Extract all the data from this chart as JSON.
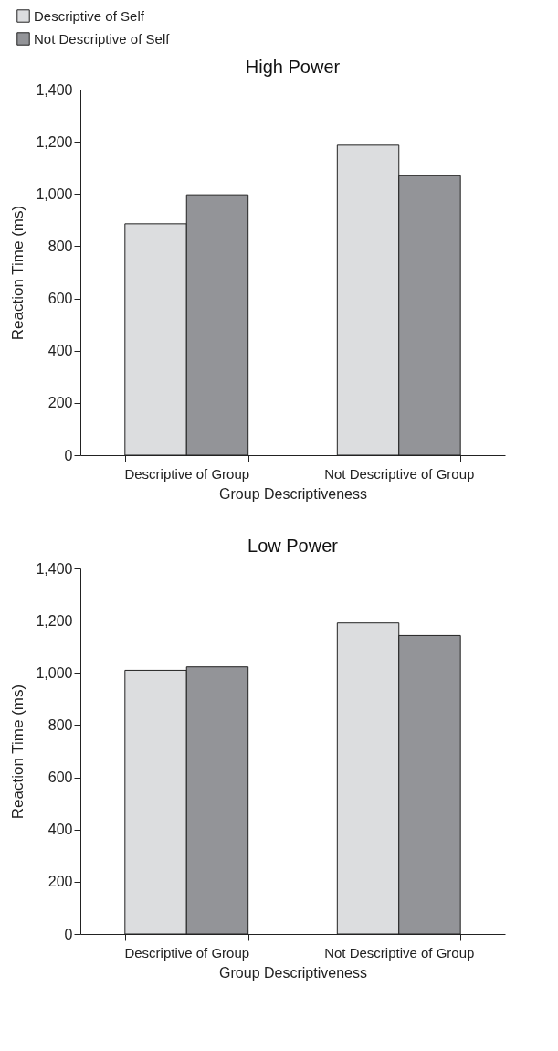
{
  "chart_data": [
    {
      "type": "bar",
      "title": "High Power",
      "xlabel": "Group Descriptiveness",
      "ylabel": "Reaction Time (ms)",
      "categories": [
        "Descriptive of Group",
        "Not Descriptive of Group"
      ],
      "series": [
        {
          "name": "Descriptive of Self",
          "color": "#dcdddf",
          "values": [
            886,
            1187
          ]
        },
        {
          "name": "Not Descriptive of Self",
          "color": "#939498",
          "values": [
            997,
            1070
          ]
        }
      ],
      "ylim": [
        0,
        1400
      ],
      "yticks": [
        0,
        200,
        400,
        600,
        800,
        {
          "value": 1000,
          "label": "1,000"
        },
        {
          "value": 1200,
          "label": "1,200"
        },
        {
          "value": 1400,
          "label": "1,400"
        }
      ],
      "grid": false,
      "legend": "top left"
    },
    {
      "type": "bar",
      "title": "Low Power",
      "xlabel": "Group Descriptiveness",
      "ylabel": "Reaction Time (ms)",
      "categories": [
        "Descriptive of Group",
        "Not Descriptive of Group"
      ],
      "series": [
        {
          "name": "Descriptive of Self",
          "color": "#dcdddf",
          "values": [
            1010,
            1191
          ]
        },
        {
          "name": "Not Descriptive of Self",
          "color": "#939498",
          "values": [
            1023,
            1143
          ]
        }
      ],
      "ylim": [
        0,
        1400
      ],
      "yticks": [
        0,
        200,
        400,
        600,
        800,
        {
          "value": 1000,
          "label": "1,000"
        },
        {
          "value": 1200,
          "label": "1,200"
        },
        {
          "value": 1400,
          "label": "1,400"
        }
      ],
      "grid": false,
      "legend": false
    }
  ]
}
